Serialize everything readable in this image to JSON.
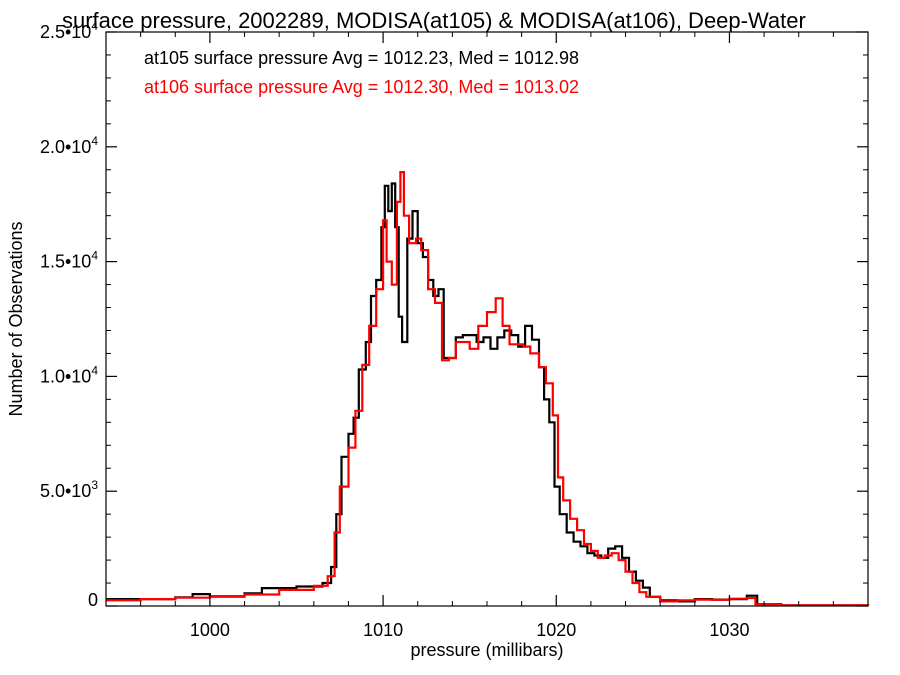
{
  "chart_data": {
    "type": "line",
    "title": "surface pressure, 2002289, MODISA(at105) & MODISA(at106), Deep-Water",
    "xlabel": "pressure (millibars)",
    "ylabel": "Number of Observations",
    "xlim": [
      994,
      1038
    ],
    "ylim": [
      0,
      25000
    ],
    "xticks": [
      1000,
      1010,
      1020,
      1030
    ],
    "xtick_labels": [
      "1000",
      "1010",
      "1020",
      "1030"
    ],
    "yticks": [
      0,
      5000,
      10000,
      15000,
      20000,
      25000
    ],
    "ytick_labels": [
      {
        "mant": "0",
        "exp": ""
      },
      {
        "mant": "5.0•10",
        "exp": "3"
      },
      {
        "mant": "1.0•10",
        "exp": "4"
      },
      {
        "mant": "1.5•10",
        "exp": "4"
      },
      {
        "mant": "2.0•10",
        "exp": "4"
      },
      {
        "mant": "2.5•10",
        "exp": "4"
      }
    ],
    "annotations": [
      {
        "text": "at105 surface pressure Avg = 1012.23, Med = 1012.98",
        "color": "#000000"
      },
      {
        "text": "at106 surface pressure Avg = 1012.30, Med = 1013.02",
        "color": "#ff0000"
      }
    ],
    "series": [
      {
        "color": "#000000",
        "style": "step",
        "points": [
          [
            994,
            300
          ],
          [
            996,
            300
          ],
          [
            998,
            380
          ],
          [
            999,
            520
          ],
          [
            1000,
            420
          ],
          [
            1002,
            550
          ],
          [
            1003,
            780
          ],
          [
            1005,
            850
          ],
          [
            1006.5,
            1000
          ],
          [
            1007,
            1700
          ],
          [
            1007.3,
            4000
          ],
          [
            1007.6,
            6500
          ],
          [
            1008,
            7500
          ],
          [
            1008.3,
            8200
          ],
          [
            1008.6,
            10300
          ],
          [
            1009,
            11500
          ],
          [
            1009.3,
            13500
          ],
          [
            1009.6,
            14200
          ],
          [
            1009.9,
            16500
          ],
          [
            1010.1,
            18300
          ],
          [
            1010.3,
            17200
          ],
          [
            1010.5,
            18400
          ],
          [
            1010.7,
            16500
          ],
          [
            1010.9,
            12600
          ],
          [
            1011.1,
            11500
          ],
          [
            1011.4,
            16000
          ],
          [
            1011.7,
            17200
          ],
          [
            1012,
            15800
          ],
          [
            1012.3,
            15200
          ],
          [
            1012.6,
            14200
          ],
          [
            1012.9,
            13500
          ],
          [
            1013.2,
            13800
          ],
          [
            1013.5,
            10800
          ],
          [
            1013.8,
            10800
          ],
          [
            1014.2,
            11700
          ],
          [
            1014.6,
            11800
          ],
          [
            1015,
            11800
          ],
          [
            1015.4,
            11500
          ],
          [
            1015.8,
            11700
          ],
          [
            1016.2,
            11200
          ],
          [
            1016.6,
            11700
          ],
          [
            1017,
            12000
          ],
          [
            1017.4,
            11800
          ],
          [
            1017.8,
            11300
          ],
          [
            1018.2,
            12200
          ],
          [
            1018.6,
            11600
          ],
          [
            1019,
            10400
          ],
          [
            1019.3,
            9000
          ],
          [
            1019.6,
            8000
          ],
          [
            1019.9,
            5200
          ],
          [
            1020.2,
            4000
          ],
          [
            1020.6,
            3200
          ],
          [
            1021,
            2800
          ],
          [
            1021.4,
            2600
          ],
          [
            1021.8,
            2300
          ],
          [
            1022.2,
            2200
          ],
          [
            1022.6,
            2100
          ],
          [
            1023,
            2500
          ],
          [
            1023.4,
            2600
          ],
          [
            1023.8,
            2100
          ],
          [
            1024.2,
            1500
          ],
          [
            1024.6,
            1100
          ],
          [
            1025,
            800
          ],
          [
            1025.4,
            400
          ],
          [
            1026,
            250
          ],
          [
            1027,
            200
          ],
          [
            1028,
            300
          ],
          [
            1029,
            280
          ],
          [
            1030,
            300
          ],
          [
            1031,
            450
          ],
          [
            1031.6,
            80
          ],
          [
            1033,
            30
          ],
          [
            1038,
            20
          ]
        ]
      },
      {
        "color": "#ff0000",
        "style": "step",
        "points": [
          [
            994,
            250
          ],
          [
            996,
            300
          ],
          [
            998,
            360
          ],
          [
            1000,
            400
          ],
          [
            1002,
            500
          ],
          [
            1004,
            700
          ],
          [
            1006,
            880
          ],
          [
            1006.8,
            1300
          ],
          [
            1007.2,
            3200
          ],
          [
            1007.5,
            5200
          ],
          [
            1008,
            6900
          ],
          [
            1008.4,
            8500
          ],
          [
            1008.8,
            10500
          ],
          [
            1009.2,
            12200
          ],
          [
            1009.6,
            13800
          ],
          [
            1010,
            16800
          ],
          [
            1010.2,
            15000
          ],
          [
            1010.5,
            14000
          ],
          [
            1010.8,
            17600
          ],
          [
            1011,
            18900
          ],
          [
            1011.2,
            17000
          ],
          [
            1011.5,
            15800
          ],
          [
            1011.9,
            16000
          ],
          [
            1012.2,
            15500
          ],
          [
            1012.6,
            13800
          ],
          [
            1013,
            13200
          ],
          [
            1013.4,
            10700
          ],
          [
            1013.8,
            10800
          ],
          [
            1014.2,
            11500
          ],
          [
            1014.6,
            11500
          ],
          [
            1015,
            11200
          ],
          [
            1015.5,
            12200
          ],
          [
            1016,
            12800
          ],
          [
            1016.5,
            13400
          ],
          [
            1016.9,
            12200
          ],
          [
            1017.3,
            11400
          ],
          [
            1017.7,
            11400
          ],
          [
            1018.1,
            11300
          ],
          [
            1018.5,
            11000
          ],
          [
            1019,
            10400
          ],
          [
            1019.4,
            9700
          ],
          [
            1019.8,
            8300
          ],
          [
            1020.1,
            5600
          ],
          [
            1020.4,
            4600
          ],
          [
            1020.8,
            3800
          ],
          [
            1021.2,
            3300
          ],
          [
            1021.6,
            2700
          ],
          [
            1022,
            2400
          ],
          [
            1022.4,
            2100
          ],
          [
            1022.8,
            2200
          ],
          [
            1023.2,
            2300
          ],
          [
            1023.6,
            2000
          ],
          [
            1024,
            1500
          ],
          [
            1024.4,
            1000
          ],
          [
            1024.8,
            600
          ],
          [
            1025.2,
            400
          ],
          [
            1026,
            200
          ],
          [
            1027,
            250
          ],
          [
            1028,
            280
          ],
          [
            1029,
            270
          ],
          [
            1030,
            320
          ],
          [
            1031,
            350
          ],
          [
            1031.5,
            80
          ],
          [
            1033,
            30
          ],
          [
            1038,
            20
          ]
        ]
      }
    ]
  }
}
